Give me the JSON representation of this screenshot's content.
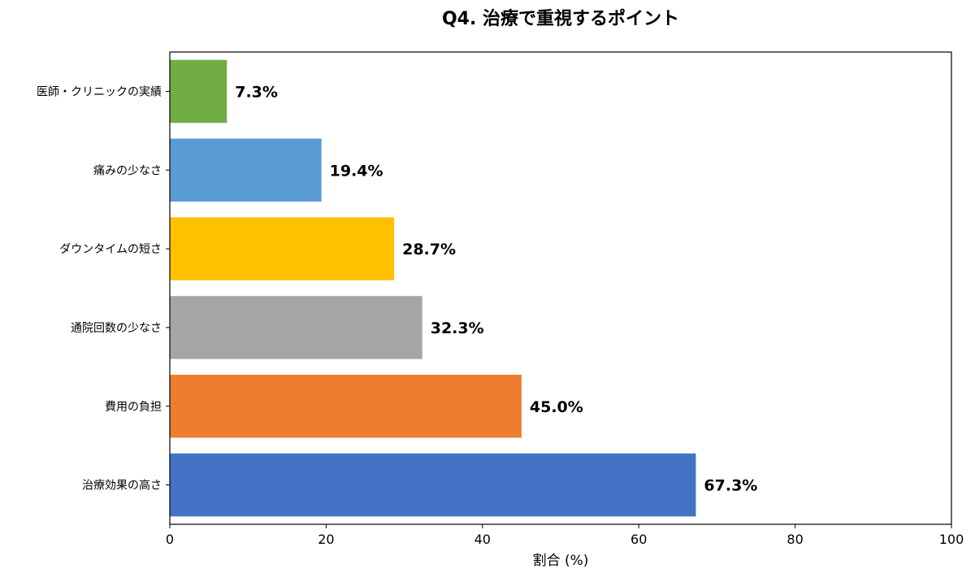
{
  "chart_data": {
    "type": "bar",
    "orientation": "horizontal",
    "title": "Q4. 治療で重視するポイント",
    "xlabel": "割合 (%)",
    "ylabel": "",
    "xlim": [
      0,
      100
    ],
    "xticks": [
      0,
      20,
      40,
      60,
      80,
      100
    ],
    "grid": false,
    "categories": [
      "医師・クリニックの実績",
      "痛みの少なさ",
      "ダウンタイムの短さ",
      "通院回数の少なさ",
      "費用の負担",
      "治療効果の高さ"
    ],
    "values": [
      7.3,
      19.4,
      28.7,
      32.3,
      45.0,
      67.3
    ],
    "value_labels": [
      "7.3%",
      "19.4%",
      "28.7%",
      "32.3%",
      "45.0%",
      "67.3%"
    ],
    "colors": [
      "#70ad47",
      "#5b9bd5",
      "#ffc000",
      "#a5a5a5",
      "#ed7d31",
      "#4472c4"
    ]
  }
}
